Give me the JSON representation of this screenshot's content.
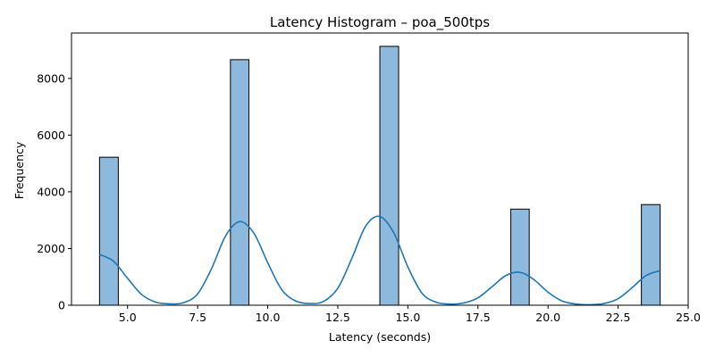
{
  "chart_data": {
    "type": "bar",
    "title": "Latency Histogram – poa_500tps",
    "xlabel": "Latency (seconds)",
    "ylabel": "Frequency",
    "xlim": [
      3.0,
      25.0
    ],
    "ylim": [
      0,
      9600
    ],
    "xticks": [
      "5.0",
      "7.5",
      "10.0",
      "12.5",
      "15.0",
      "17.5",
      "20.0",
      "22.5",
      "25.0"
    ],
    "xtick_values": [
      5.0,
      7.5,
      10.0,
      12.5,
      15.0,
      17.5,
      20.0,
      22.5,
      25.0
    ],
    "yticks": [
      "0",
      "2000",
      "4000",
      "6000",
      "8000"
    ],
    "ytick_values": [
      0,
      2000,
      4000,
      6000,
      8000
    ],
    "grid": false,
    "bars": [
      {
        "x_start": 4.0,
        "x_end": 4.67,
        "value": 5220
      },
      {
        "x_start": 8.67,
        "x_end": 9.33,
        "value": 8660
      },
      {
        "x_start": 14.0,
        "x_end": 14.67,
        "value": 9130
      },
      {
        "x_start": 18.67,
        "x_end": 19.33,
        "value": 3390
      },
      {
        "x_start": 23.33,
        "x_end": 24.0,
        "value": 3550
      }
    ],
    "kde": {
      "x": [
        4.0,
        4.5,
        5.0,
        5.5,
        6.0,
        6.5,
        7.0,
        7.5,
        8.0,
        8.5,
        9.0,
        9.5,
        10.0,
        10.5,
        11.0,
        11.5,
        12.0,
        12.5,
        13.0,
        13.5,
        14.0,
        14.5,
        15.0,
        15.5,
        16.0,
        16.5,
        17.0,
        17.5,
        18.0,
        18.5,
        19.0,
        19.5,
        20.0,
        20.5,
        21.0,
        21.5,
        22.0,
        22.5,
        23.0,
        23.5,
        24.0
      ],
      "y": [
        1790,
        1550,
        950,
        380,
        110,
        50,
        90,
        400,
        1300,
        2450,
        2950,
        2550,
        1500,
        550,
        150,
        60,
        140,
        600,
        1650,
        2800,
        3130,
        2550,
        1350,
        430,
        110,
        40,
        80,
        260,
        650,
        1050,
        1160,
        900,
        460,
        150,
        40,
        20,
        60,
        230,
        620,
        1050,
        1220
      ]
    },
    "colors": {
      "bar_fill": "#8cb9dc",
      "bar_edge": "#000000",
      "kde_line": "#1f77b4"
    }
  }
}
